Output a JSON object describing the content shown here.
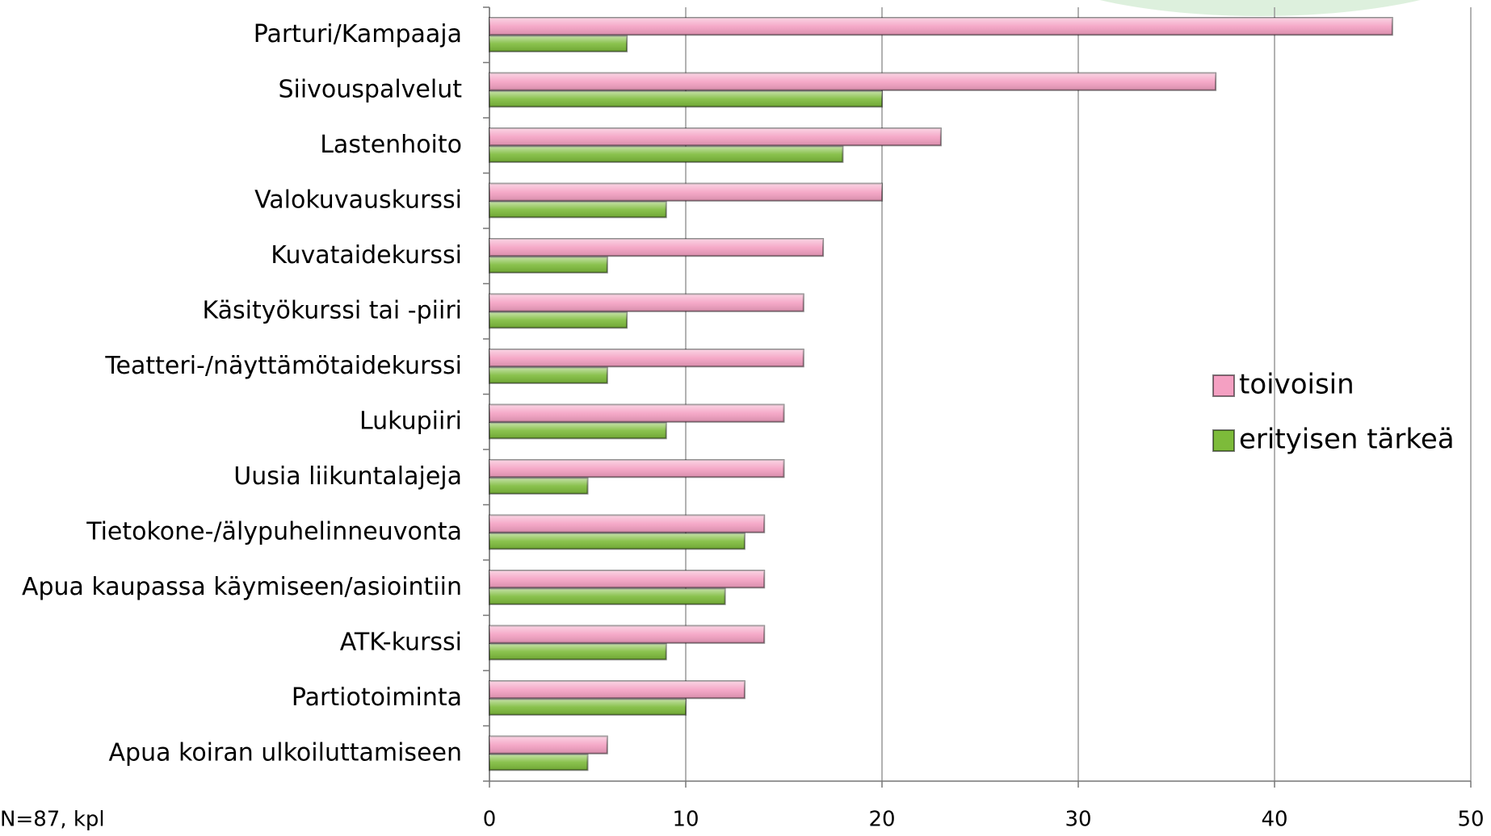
{
  "chart_data": {
    "type": "barh",
    "note": "N=87, kpl",
    "categories": [
      "Parturi/Kampaaja",
      "Siivouspalvelut",
      "Lastenhoito",
      "Valokuvauskurssi",
      "Kuvataidekurssi",
      "Käsityökurssi tai -piiri",
      "Teatteri-/näyttämötaidekurssi",
      "Lukupiiri",
      "Uusia liikuntalajeja",
      "Tietokone-/älypuhelinneuvonta",
      "Apua kaupassa käymiseen/asiointiin",
      "ATK-kurssi",
      "Partiotoiminta",
      "Apua koiran ulkoiluttamiseen"
    ],
    "series": [
      {
        "name": "toivoisin",
        "color": "#f4a0c2",
        "values": [
          46,
          37,
          23,
          20,
          17,
          16,
          16,
          15,
          15,
          14,
          14,
          14,
          13,
          6
        ]
      },
      {
        "name": "erityisen tärkeä",
        "color": "#7dbb3a",
        "values": [
          7,
          20,
          18,
          9,
          6,
          7,
          6,
          9,
          5,
          13,
          12,
          9,
          10,
          5
        ]
      }
    ],
    "xlim": [
      0,
      50
    ],
    "xticks": [
      0,
      10,
      20,
      30,
      40,
      50
    ],
    "grid": true,
    "legend": "right"
  }
}
